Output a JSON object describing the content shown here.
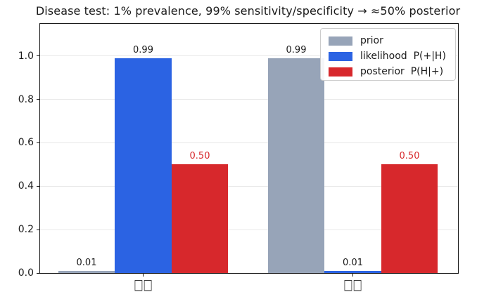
{
  "title": "Disease test: 1% prevalence, 99% sensitivity/specificity → ≈50% posterior",
  "colors": {
    "prior": "#97a4b8",
    "likelihood": "#2b63e3",
    "posterior": "#d7282c",
    "text": "#1a1a1a",
    "grid": "#e8e8e8"
  },
  "chart_data": {
    "type": "bar",
    "categories": [
      "□□",
      "□□"
    ],
    "series": [
      {
        "key": "prior",
        "name": "prior",
        "color": "#97a4b8",
        "values": [
          0.01,
          0.99
        ],
        "value_labels": [
          "0.01",
          "0.99"
        ],
        "label_color": "#1a1a1a"
      },
      {
        "key": "likelihood",
        "name": "likelihood  P(+|H)",
        "color": "#2b63e3",
        "values": [
          0.99,
          0.01
        ],
        "value_labels": [
          "0.99",
          "0.01"
        ],
        "label_color": "#1a1a1a"
      },
      {
        "key": "posterior",
        "name": "posterior  P(H|+)",
        "color": "#d7282c",
        "values": [
          0.5,
          0.5
        ],
        "value_labels": [
          "0.50",
          "0.50"
        ],
        "label_color": "#d7282c"
      }
    ],
    "yticks": [
      "0.0",
      "0.2",
      "0.4",
      "0.6",
      "0.8",
      "1.0"
    ],
    "ylim": [
      0,
      1.148
    ],
    "xlabel": "",
    "ylabel": "",
    "grid": true,
    "legend_position": "upper right"
  }
}
